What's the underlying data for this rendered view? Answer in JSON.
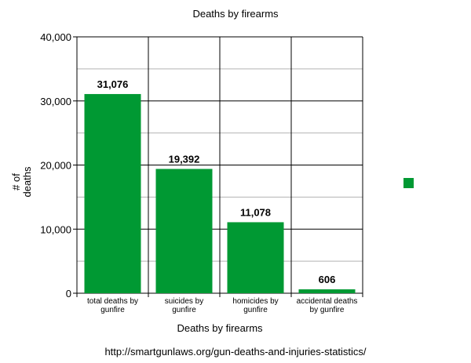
{
  "chart_data": {
    "type": "bar",
    "title": "Deaths by firearms",
    "xlabel": "Deaths by firearms",
    "ylabel": "# of deaths",
    "categories": [
      "total deaths by gunfire",
      "suicides by gunfire",
      "homicides by gunfire",
      "accidental deaths by gunfire"
    ],
    "values": [
      31076,
      19392,
      11078,
      606
    ],
    "value_labels": [
      "31,076",
      "19,392",
      "11,078",
      "606"
    ],
    "ylim": [
      0,
      40000
    ],
    "yticks": [
      0,
      10000,
      20000,
      30000,
      40000
    ],
    "ytick_labels": [
      "0",
      "10,000",
      "20,000",
      "30,000",
      "40,000"
    ],
    "grid": true,
    "legend": {
      "placement": "right",
      "entries": [
        ""
      ]
    },
    "bar_color": "#009933",
    "source": "http://smartgunlaws.org/gun-deaths-and-injuries-statistics/"
  }
}
